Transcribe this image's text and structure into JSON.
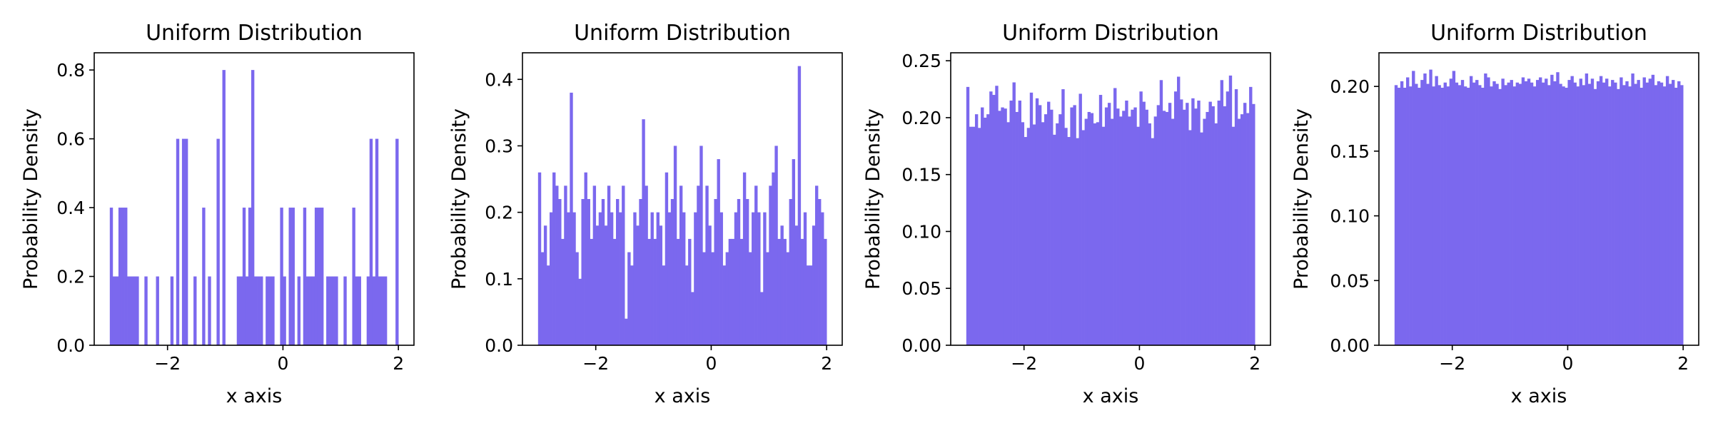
{
  "chart_data": [
    {
      "type": "histogram",
      "title": "Uniform Distribution",
      "xlabel": "x axis",
      "ylabel": "Probability Density",
      "xlim": [
        -3.27,
        2.27
      ],
      "ylim": [
        0,
        0.85
      ],
      "xticks": [
        -2,
        0,
        2
      ],
      "yticks": [
        0.0,
        0.2,
        0.4,
        0.6,
        0.8
      ],
      "ytick_decimals": 1,
      "grid": false,
      "bar_color": "#7b68ee",
      "bins": {
        "start": -3.0,
        "end": 2.0,
        "count": 100
      },
      "values": [
        0.4,
        0.2,
        0.2,
        0.4,
        0.4,
        0.4,
        0.2,
        0.2,
        0.2,
        0.2,
        0.0,
        0.0,
        0.2,
        0.0,
        0.0,
        0.0,
        0.2,
        0.0,
        0.0,
        0.0,
        0.0,
        0.2,
        0.0,
        0.6,
        0.0,
        0.6,
        0.6,
        0.0,
        0.0,
        0.2,
        0.0,
        0.0,
        0.4,
        0.0,
        0.2,
        0.0,
        0.0,
        0.6,
        0.0,
        0.8,
        0.0,
        0.0,
        0.0,
        0.0,
        0.2,
        0.2,
        0.4,
        0.2,
        0.4,
        0.8,
        0.2,
        0.2,
        0.2,
        0.0,
        0.2,
        0.2,
        0.2,
        0.0,
        0.0,
        0.4,
        0.2,
        0.0,
        0.4,
        0.4,
        0.0,
        0.2,
        0.0,
        0.4,
        0.2,
        0.2,
        0.2,
        0.4,
        0.4,
        0.4,
        0.0,
        0.2,
        0.2,
        0.2,
        0.2,
        0.0,
        0.0,
        0.2,
        0.0,
        0.0,
        0.4,
        0.2,
        0.2,
        0.0,
        0.0,
        0.2,
        0.6,
        0.2,
        0.6,
        0.2,
        0.2,
        0.2,
        0.0,
        0.0,
        0.0,
        0.6
      ]
    },
    {
      "type": "histogram",
      "title": "Uniform Distribution",
      "xlabel": "x axis",
      "ylabel": "Probability Density",
      "xlim": [
        -3.27,
        2.27
      ],
      "ylim": [
        0,
        0.44
      ],
      "xticks": [
        -2,
        0,
        2
      ],
      "yticks": [
        0.0,
        0.1,
        0.2,
        0.3,
        0.4
      ],
      "ytick_decimals": 1,
      "grid": false,
      "bar_color": "#7b68ee",
      "bins": {
        "start": -3.0,
        "end": 2.0,
        "count": 100
      },
      "values": [
        0.26,
        0.14,
        0.18,
        0.12,
        0.2,
        0.26,
        0.24,
        0.22,
        0.16,
        0.24,
        0.2,
        0.38,
        0.2,
        0.14,
        0.1,
        0.22,
        0.26,
        0.22,
        0.16,
        0.24,
        0.18,
        0.2,
        0.22,
        0.18,
        0.24,
        0.2,
        0.16,
        0.22,
        0.2,
        0.24,
        0.04,
        0.14,
        0.12,
        0.2,
        0.18,
        0.22,
        0.34,
        0.24,
        0.16,
        0.2,
        0.16,
        0.2,
        0.18,
        0.12,
        0.26,
        0.2,
        0.22,
        0.3,
        0.16,
        0.24,
        0.2,
        0.12,
        0.16,
        0.08,
        0.2,
        0.24,
        0.3,
        0.14,
        0.24,
        0.18,
        0.14,
        0.22,
        0.28,
        0.2,
        0.12,
        0.14,
        0.16,
        0.16,
        0.2,
        0.22,
        0.16,
        0.26,
        0.22,
        0.14,
        0.2,
        0.24,
        0.2,
        0.08,
        0.2,
        0.14,
        0.24,
        0.26,
        0.3,
        0.16,
        0.18,
        0.16,
        0.14,
        0.22,
        0.28,
        0.18,
        0.42,
        0.16,
        0.2,
        0.12,
        0.12,
        0.18,
        0.24,
        0.22,
        0.2,
        0.16
      ]
    },
    {
      "type": "histogram",
      "title": "Uniform Distribution",
      "xlabel": "x axis",
      "ylabel": "Probability Density",
      "xlim": [
        -3.27,
        2.27
      ],
      "ylim": [
        0,
        0.257
      ],
      "xticks": [
        -2,
        0,
        2
      ],
      "yticks": [
        0.0,
        0.05,
        0.1,
        0.15,
        0.2,
        0.25
      ],
      "ytick_decimals": 2,
      "grid": false,
      "bar_color": "#7b68ee",
      "bins": {
        "start": -3.0,
        "end": 2.0,
        "count": 100
      },
      "values": [
        0.227,
        0.192,
        0.192,
        0.203,
        0.191,
        0.209,
        0.2,
        0.203,
        0.223,
        0.22,
        0.228,
        0.206,
        0.209,
        0.208,
        0.196,
        0.215,
        0.231,
        0.205,
        0.215,
        0.196,
        0.183,
        0.191,
        0.222,
        0.194,
        0.217,
        0.211,
        0.196,
        0.203,
        0.214,
        0.207,
        0.185,
        0.195,
        0.203,
        0.225,
        0.191,
        0.183,
        0.209,
        0.211,
        0.182,
        0.221,
        0.189,
        0.199,
        0.205,
        0.204,
        0.195,
        0.196,
        0.22,
        0.192,
        0.209,
        0.213,
        0.199,
        0.226,
        0.208,
        0.201,
        0.206,
        0.215,
        0.201,
        0.207,
        0.209,
        0.192,
        0.223,
        0.214,
        0.207,
        0.195,
        0.182,
        0.201,
        0.211,
        0.233,
        0.206,
        0.205,
        0.213,
        0.199,
        0.223,
        0.236,
        0.216,
        0.207,
        0.213,
        0.189,
        0.217,
        0.208,
        0.215,
        0.187,
        0.199,
        0.205,
        0.214,
        0.21,
        0.195,
        0.215,
        0.233,
        0.21,
        0.223,
        0.237,
        0.192,
        0.225,
        0.199,
        0.203,
        0.213,
        0.204,
        0.227,
        0.212
      ]
    },
    {
      "type": "histogram",
      "title": "Uniform Distribution",
      "xlabel": "x axis",
      "ylabel": "Probability Density",
      "xlim": [
        -3.27,
        2.27
      ],
      "ylim": [
        0,
        0.226
      ],
      "xticks": [
        -2,
        0,
        2
      ],
      "yticks": [
        0.0,
        0.05,
        0.1,
        0.15,
        0.2
      ],
      "ytick_decimals": 2,
      "grid": false,
      "bar_color": "#7b68ee",
      "bins": {
        "start": -3.0,
        "end": 2.0,
        "count": 100
      },
      "values": [
        0.201,
        0.199,
        0.204,
        0.199,
        0.207,
        0.2,
        0.212,
        0.202,
        0.199,
        0.205,
        0.21,
        0.202,
        0.213,
        0.2,
        0.208,
        0.201,
        0.199,
        0.203,
        0.2,
        0.206,
        0.212,
        0.203,
        0.201,
        0.205,
        0.2,
        0.199,
        0.208,
        0.203,
        0.205,
        0.201,
        0.199,
        0.21,
        0.207,
        0.2,
        0.204,
        0.202,
        0.198,
        0.206,
        0.201,
        0.203,
        0.205,
        0.2,
        0.203,
        0.202,
        0.207,
        0.204,
        0.206,
        0.203,
        0.2,
        0.205,
        0.207,
        0.203,
        0.206,
        0.201,
        0.209,
        0.204,
        0.211,
        0.202,
        0.2,
        0.199,
        0.205,
        0.208,
        0.203,
        0.2,
        0.206,
        0.201,
        0.21,
        0.202,
        0.206,
        0.198,
        0.204,
        0.208,
        0.203,
        0.206,
        0.2,
        0.205,
        0.203,
        0.198,
        0.207,
        0.201,
        0.204,
        0.2,
        0.21,
        0.202,
        0.205,
        0.199,
        0.207,
        0.203,
        0.206,
        0.209,
        0.201,
        0.204,
        0.203,
        0.2,
        0.208,
        0.202,
        0.205,
        0.199,
        0.204,
        0.201
      ]
    }
  ]
}
